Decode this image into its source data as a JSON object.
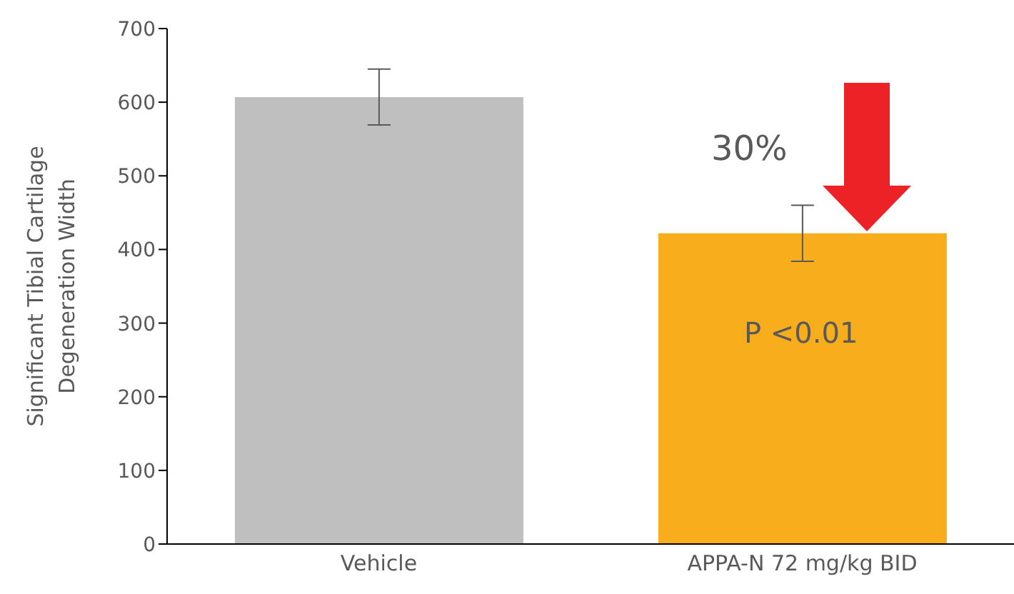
{
  "chart_data": {
    "type": "bar",
    "ylabel": "Significant Tibial Cartilage Degeneration Width",
    "categories": [
      "Vehicle",
      "APPA-N 72 mg/kg BID"
    ],
    "values": [
      607,
      422
    ],
    "colors": [
      "#bfbfbf",
      "#f8ad1d"
    ],
    "errors": [
      38,
      38
    ],
    "ylim": [
      0,
      700
    ],
    "yticks": [
      0,
      100,
      200,
      300,
      400,
      500,
      600,
      700
    ],
    "grid": false,
    "annotations": [
      "30%",
      "P <0.01"
    ]
  }
}
